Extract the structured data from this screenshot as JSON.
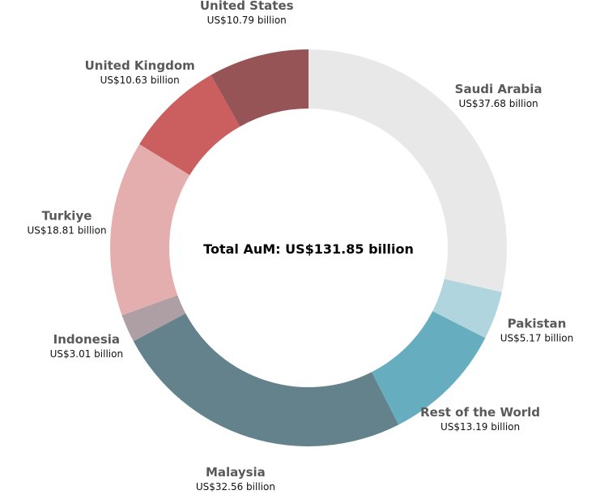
{
  "chart_data": {
    "type": "pie",
    "title": "",
    "center_label": "Total AuM: US$131.85 billion",
    "start": "top",
    "direction": "clockwise",
    "slices": [
      {
        "name": "Saudi Arabia",
        "value": 37.68,
        "value_label": "US$37.68 billion",
        "color": "#e8e8e8"
      },
      {
        "name": "Pakistan",
        "value": 5.17,
        "value_label": "US$5.17 billion",
        "color": "#b1d5df"
      },
      {
        "name": "Rest of the World",
        "value": 13.19,
        "value_label": "US$13.19 billion",
        "color": "#66adc0"
      },
      {
        "name": "Malaysia",
        "value": 32.56,
        "value_label": "US$32.56 billion",
        "color": "#63828c"
      },
      {
        "name": "Indonesia",
        "value": 3.01,
        "value_label": "US$3.01 billion",
        "color": "#ae9fa5"
      },
      {
        "name": "Turkiye",
        "value": 18.81,
        "value_label": "US$18.81 billion",
        "color": "#e5aeae"
      },
      {
        "name": "United Kingdom",
        "value": 10.63,
        "value_label": "US$10.63 billion",
        "color": "#cb5e5e"
      },
      {
        "name": "United States",
        "value": 10.79,
        "value_label": "US$10.79 billion",
        "color": "#975456"
      }
    ]
  }
}
